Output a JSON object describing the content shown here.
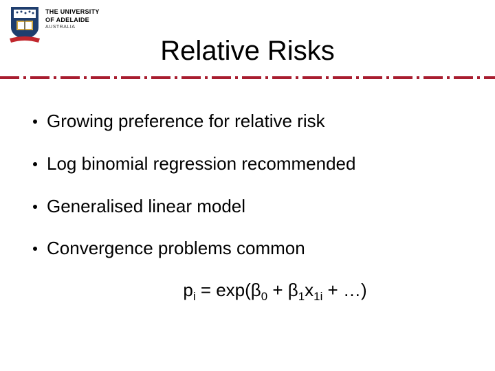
{
  "logo": {
    "line1": "THE UNIVERSITY",
    "line2": "OF ADELAIDE",
    "sub": "AUSTRALIA",
    "shield_blue": "#1f3e6e",
    "shield_gold": "#d4a943",
    "ribbon_red": "#c1272d"
  },
  "title": "Relative Risks",
  "divider": {
    "color": "#a81d2f",
    "dash_width": 28,
    "dot_width": 4,
    "gap": 6,
    "pattern_width": 44
  },
  "bullets": [
    "Growing preference for relative risk",
    "Log binomial regression recommended",
    "Generalised linear model",
    "Convergence problems common"
  ],
  "formula": {
    "p": "p",
    "p_sub": "i",
    "eq": " = exp(β",
    "b0_sub": "0",
    "plus1": " + β",
    "b1_sub": "1",
    "x": "x",
    "x_sub": "1i",
    "tail": " + …)"
  },
  "colors": {
    "text": "#000000",
    "background": "#ffffff"
  },
  "typography": {
    "title_fontsize": 40,
    "body_fontsize": 26,
    "logo_fontsize": 9
  }
}
